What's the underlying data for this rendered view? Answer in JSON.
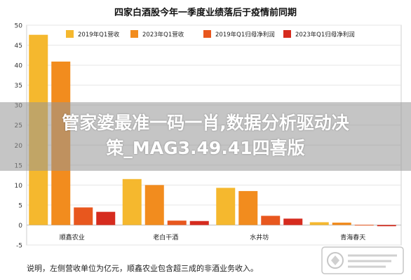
{
  "chart_data": {
    "type": "bar",
    "title": "四家白酒股今年一季度业绩落后于疫情前同期",
    "categories": [
      "顺鑫农业",
      "老白干酒",
      "水井坊",
      "青海春天"
    ],
    "series": [
      {
        "name": "2019年Q1营收",
        "color": "#f5b82e",
        "values": [
          47.6,
          11.5,
          9.3,
          0.7
        ]
      },
      {
        "name": "2023年Q1营收",
        "color": "#f28c1e",
        "values": [
          40.9,
          10.0,
          8.5,
          0.6
        ]
      },
      {
        "name": "2019年Q1归母净利润",
        "color": "#e8571e",
        "values": [
          4.4,
          1.1,
          2.3,
          0.05
        ]
      },
      {
        "name": "2023年Q1归母净利润",
        "color": "#d62b1e",
        "values": [
          3.3,
          1.0,
          1.6,
          -0.3
        ]
      }
    ],
    "ylim": [
      -5,
      50
    ],
    "yticks": [
      -5,
      0,
      5,
      10,
      15,
      20,
      25,
      30,
      35,
      40,
      45,
      50
    ],
    "grid": true,
    "legend_position": "top"
  },
  "banner": {
    "line1": "管家婆最准一码一肖,数据分析驱动决",
    "line2": "策_MAG3.49.41四喜版"
  },
  "note": "说明，左侧营收单位为亿元，顺鑫农业包含超三成的非酒业务收入。"
}
